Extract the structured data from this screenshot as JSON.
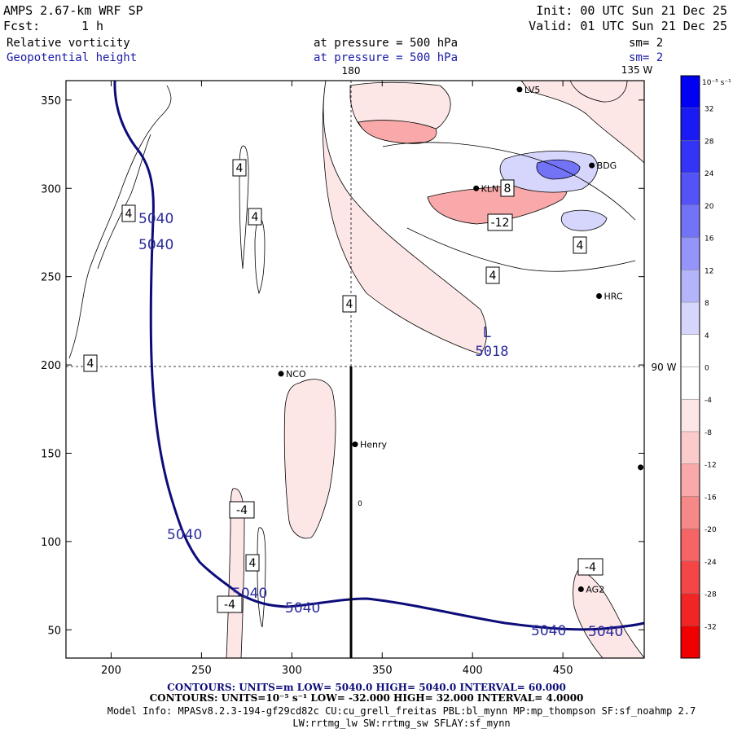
{
  "header": {
    "model": "AMPS 2.67-km WRF SP",
    "fcst_label": "Fcst:",
    "fcst_value": "1 h",
    "init": "Init: 00 UTC Sun 21 Dec 25",
    "valid": "Valid: 01 UTC Sun 21 Dec 25",
    "field1_name": "Relative vorticity",
    "field1_level": "at pressure =  500 hPa",
    "field1_sm": "sm= 2",
    "field2_name": "Geopotential height",
    "field2_level": "at pressure =  500 hPa",
    "field2_sm": "sm= 2"
  },
  "map": {
    "lon_labels": [
      "180",
      "135 W",
      "90 W"
    ],
    "x_ticks": [
      "200",
      "250",
      "300",
      "350",
      "400",
      "450"
    ],
    "y_ticks": [
      "350",
      "300",
      "250",
      "200",
      "150",
      "100",
      "50"
    ],
    "x_tick_values": [
      200,
      250,
      300,
      350,
      400,
      450
    ],
    "y_tick_values": [
      350,
      300,
      250,
      200,
      150,
      100,
      50
    ],
    "x_range": [
      175,
      495
    ],
    "y_range": [
      34,
      361
    ],
    "stations": [
      {
        "name": "LV5",
        "x": 426,
        "y": 356
      },
      {
        "name": "BDG",
        "x": 466,
        "y": 313
      },
      {
        "name": "KLN",
        "x": 402,
        "y": 300
      },
      {
        "name": "HRC",
        "x": 470,
        "y": 239
      },
      {
        "name": "NCO",
        "x": 294,
        "y": 195
      },
      {
        "name": "Henry",
        "x": 335,
        "y": 155
      },
      {
        "name": "AG2",
        "x": 460,
        "y": 73
      },
      {
        "name": "",
        "x": 493,
        "y": 142
      }
    ],
    "low_marker": {
      "symbol": "L",
      "value": "5018"
    },
    "height_labels": [
      "5040",
      "5040",
      "5040",
      "5040",
      "5040",
      "5040",
      "5040"
    ],
    "vort_labels": [
      "4",
      "4",
      "4",
      "4",
      "4",
      "4",
      "8",
      "-12",
      "4",
      "-4",
      "4",
      "-4",
      "-4",
      "0"
    ]
  },
  "colorbar": {
    "unit": "10⁻⁵ s⁻¹",
    "levels": [
      36,
      32,
      28,
      24,
      20,
      16,
      12,
      8,
      4,
      0,
      -4,
      -8,
      -12,
      -16,
      -20,
      -24,
      -28,
      -32,
      -36
    ],
    "labels": [
      "32",
      "28",
      "24",
      "20",
      "16",
      "12",
      "8",
      "4",
      "0",
      "-4",
      "-8",
      "-12",
      "-16",
      "-20",
      "-24",
      "-28",
      "-32"
    ],
    "colors": [
      "#0000f2",
      "#1a1af4",
      "#3434f6",
      "#5353f7",
      "#7373f8",
      "#9494fa",
      "#b4b4fb",
      "#d6d6fd",
      "#ffffff",
      "#ffffff",
      "#fde6e6",
      "#fbcaca",
      "#f9a9a9",
      "#f78888",
      "#f56565",
      "#f44646",
      "#f22525",
      "#f00000"
    ]
  },
  "footer": {
    "line1": "CONTOURS:  UNITS=m  LOW=  5040.0        HIGH=  5040.0        INTERVAL=   60.000",
    "line2": "CONTOURS:  UNITS=10⁻⁵ s⁻¹  LOW= -32.000        HIGH=  32.000        INTERVAL=   4.0000",
    "line3": "Model Info: MPASv8.2.3-194-gf29cd82c CU:cu_grell_freitas PBL:bl_mynn MP:mp_thompson SF:sf_noahmp 2.7",
    "line4": "LW:rrtmg_lw SW:rrtmg_sw SFLAY:sf_mynn"
  }
}
